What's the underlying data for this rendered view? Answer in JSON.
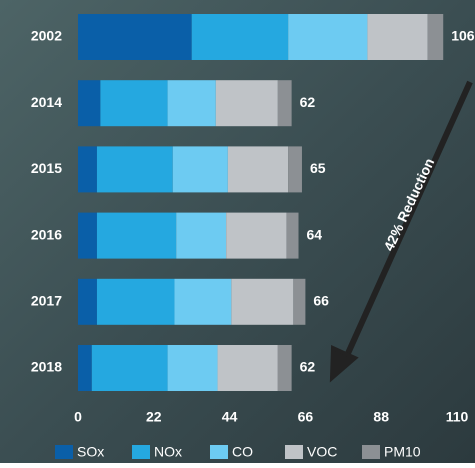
{
  "chart_data": {
    "type": "stacked-bar-horizontal",
    "categories": [
      "2002",
      "2014",
      "2015",
      "2016",
      "2017",
      "2018"
    ],
    "series": [
      {
        "name": "SOx",
        "color": "#0a5fa8",
        "values": [
          33,
          6.5,
          5.5,
          5.5,
          5.5,
          4
        ]
      },
      {
        "name": "NOx",
        "color": "#25a8e0",
        "values": [
          28,
          19.5,
          22,
          23,
          22.5,
          22
        ]
      },
      {
        "name": "CO",
        "color": "#6dcbf2",
        "values": [
          23,
          14,
          16,
          14.5,
          16.5,
          14.5
        ]
      },
      {
        "name": "VOC",
        "color": "#bfc3c7",
        "values": [
          17.5,
          18,
          17.5,
          17.5,
          18,
          17.5
        ]
      },
      {
        "name": "PM10",
        "color": "#8c9094",
        "values": [
          4.5,
          4,
          4,
          3.5,
          3.5,
          4
        ]
      }
    ],
    "totals": [
      106,
      62,
      65,
      64,
      66,
      62
    ],
    "annotation": "42% Reduction",
    "xlim": [
      0,
      110
    ],
    "xticks": [
      0,
      22,
      44,
      66,
      88,
      110
    ]
  }
}
